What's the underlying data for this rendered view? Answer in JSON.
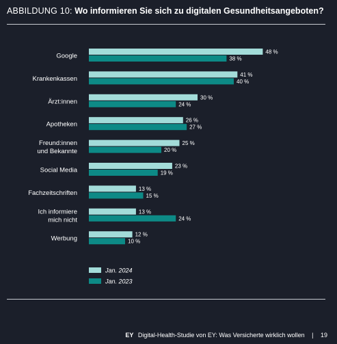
{
  "header": {
    "figure_label": "ABBILDUNG 10:",
    "question": "Wo informieren Sie sich zu digitalen Gesundheitsangeboten?"
  },
  "chart_data": {
    "type": "bar",
    "orientation": "horizontal",
    "categories": [
      [
        "Google"
      ],
      [
        "Krankenkassen"
      ],
      [
        "Ärzt:innen"
      ],
      [
        "Apotheken"
      ],
      [
        "Freund:innen",
        "und Bekannte"
      ],
      [
        "Social Media"
      ],
      [
        "Fachzeitschriften"
      ],
      [
        "Ich informiere",
        "mich nicht"
      ],
      [
        "Werbung"
      ]
    ],
    "series": [
      {
        "name": "Jan. 2024",
        "color": "#a3dcd9",
        "values": [
          48,
          41,
          30,
          26,
          25,
          23,
          13,
          13,
          12
        ]
      },
      {
        "name": "Jan. 2023",
        "color": "#0d8a86",
        "values": [
          38,
          40,
          24,
          27,
          20,
          19,
          15,
          24,
          10
        ]
      }
    ],
    "value_suffix": " %",
    "legend_position": "bottom-left",
    "grid": false
  },
  "footer": {
    "brand": "EY",
    "study": "Digital-Health-Studie von EY: Was Versicherte wirklich wollen",
    "separator": "|",
    "page": "19"
  }
}
